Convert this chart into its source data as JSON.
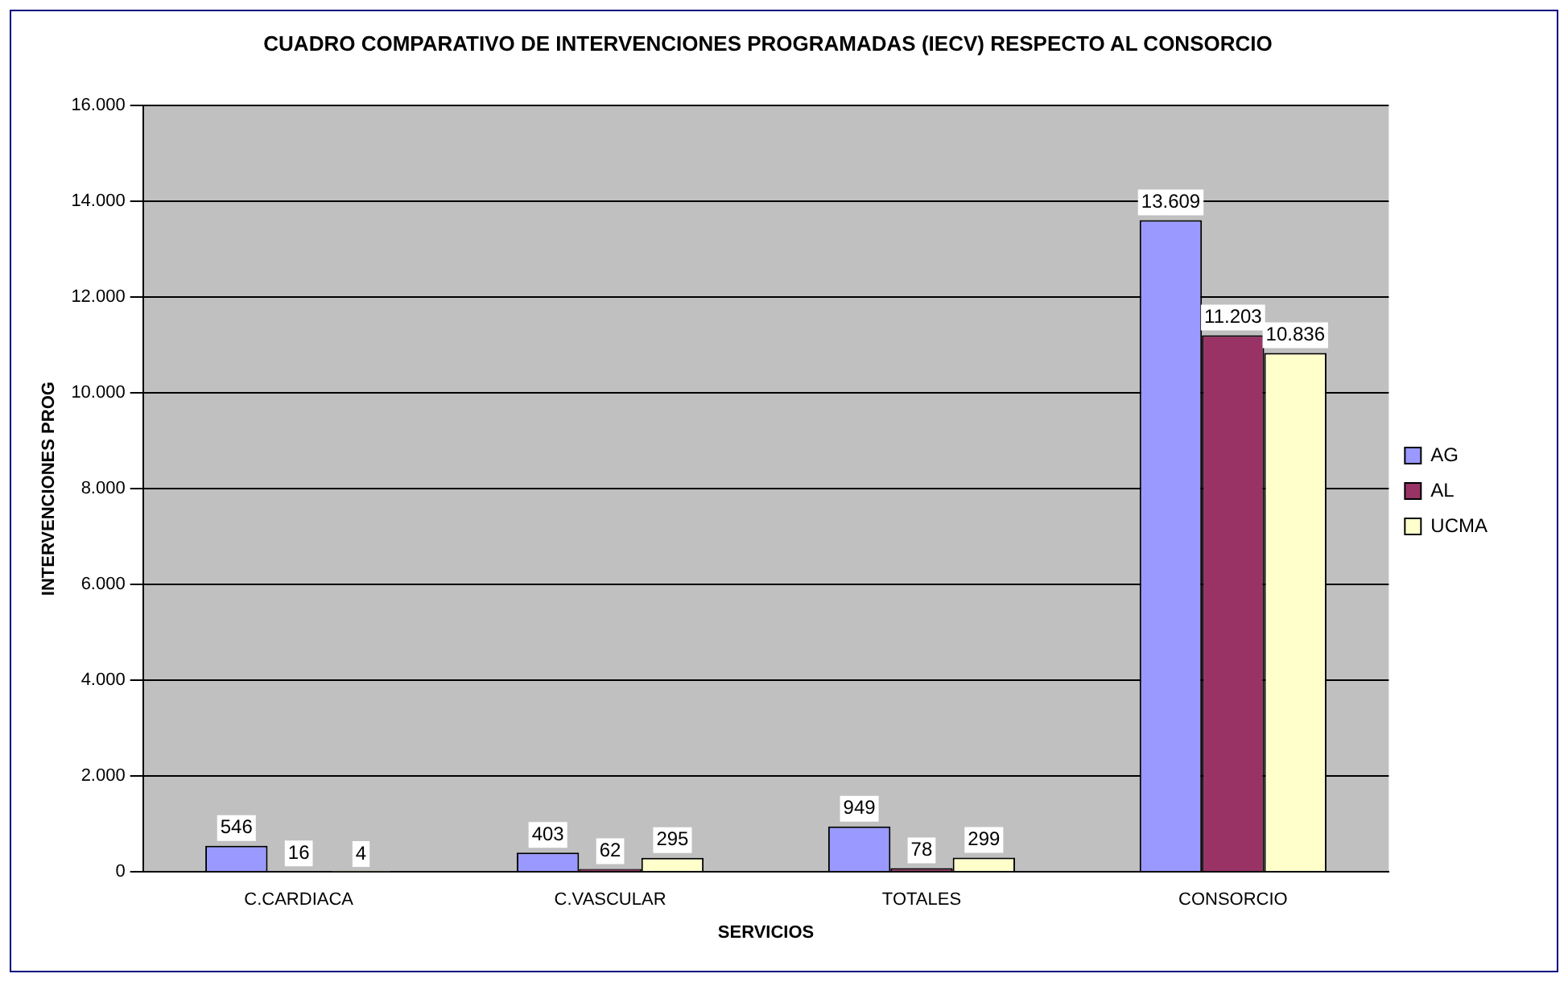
{
  "chart_data": {
    "type": "bar",
    "title": "CUADRO COMPARATIVO DE INTERVENCIONES PROGRAMADAS (IECV) RESPECTO AL CONSORCIO",
    "xlabel": "SERVICIOS",
    "ylabel": "INTERVENCIONES PROG",
    "categories": [
      "C.CARDIACA",
      "C.VASCULAR",
      "TOTALES",
      "CONSORCIO"
    ],
    "series": [
      {
        "name": "AG",
        "color": "#9999ff",
        "values": [
          546,
          403,
          949,
          13609
        ],
        "value_labels": [
          "546",
          "403",
          "949",
          "13.609"
        ]
      },
      {
        "name": "AL",
        "color": "#993366",
        "values": [
          16,
          62,
          78,
          11203
        ],
        "value_labels": [
          "16",
          "62",
          "78",
          "11.203"
        ]
      },
      {
        "name": "UCMA",
        "color": "#ffffcc",
        "values": [
          4,
          295,
          299,
          10836
        ],
        "value_labels": [
          "4",
          "295",
          "299",
          "10.836"
        ]
      }
    ],
    "ylim": [
      0,
      16000
    ],
    "yticks": [
      {
        "value": 0,
        "label": "0"
      },
      {
        "value": 2000,
        "label": "2.000"
      },
      {
        "value": 4000,
        "label": "4.000"
      },
      {
        "value": 6000,
        "label": "6.000"
      },
      {
        "value": 8000,
        "label": "8.000"
      },
      {
        "value": 10000,
        "label": "10.000"
      },
      {
        "value": 12000,
        "label": "12.000"
      },
      {
        "value": 14000,
        "label": "14.000"
      },
      {
        "value": 16000,
        "label": "16.000"
      }
    ],
    "grid": "y",
    "legend": "right"
  }
}
